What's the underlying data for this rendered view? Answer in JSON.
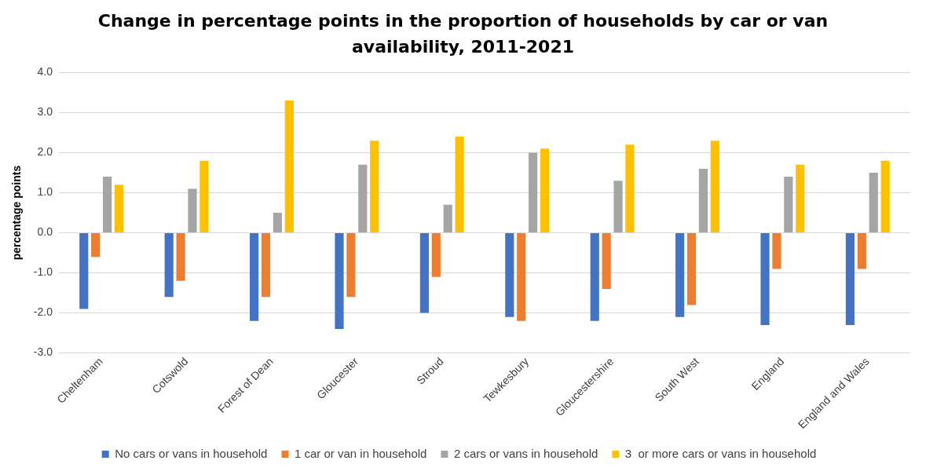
{
  "chart_data": {
    "type": "bar",
    "title": "Change in percentage points in the proportion of households by car or van availability, 2011-2021",
    "ylabel": "percentage points",
    "categories": [
      "Cheltenham",
      "Cotswold",
      "Forest of Dean",
      "Gloucester",
      "Stroud",
      "Tewkesbury",
      "Gloucestershire",
      "South West",
      "England",
      "England and Wales"
    ],
    "series": [
      {
        "name": "No cars or vans in household",
        "color": "#4472c4",
        "values": [
          -1.9,
          -1.6,
          -2.2,
          -2.4,
          -2.0,
          -2.1,
          -2.2,
          -2.1,
          -2.3,
          -2.3
        ]
      },
      {
        "name": "1 car or van in household",
        "color": "#ed7d31",
        "values": [
          -0.6,
          -1.2,
          -1.6,
          -1.6,
          -1.1,
          -2.2,
          -1.4,
          -1.8,
          -0.9,
          -0.9
        ]
      },
      {
        "name": "2 cars or vans in household",
        "color": "#a5a5a5",
        "values": [
          1.4,
          1.1,
          0.5,
          1.7,
          0.7,
          2.0,
          1.3,
          1.6,
          1.4,
          1.5
        ]
      },
      {
        "name": "3  or more cars or vans in household",
        "color": "#ffc000",
        "values": [
          1.2,
          1.8,
          3.3,
          2.3,
          2.4,
          2.1,
          2.2,
          2.3,
          1.7,
          1.8
        ]
      }
    ],
    "ylim": [
      -3,
      4
    ],
    "yticks": [
      {
        "value": -3,
        "label": "-3.0"
      },
      {
        "value": -2,
        "label": "-2.0"
      },
      {
        "value": -1,
        "label": "-1.0"
      },
      {
        "value": 0,
        "label": "0.0"
      },
      {
        "value": 1,
        "label": "1.0"
      },
      {
        "value": 2,
        "label": "2.0"
      },
      {
        "value": 3,
        "label": "3.0"
      },
      {
        "value": 4,
        "label": "4.0"
      }
    ],
    "grid": "y",
    "legend": "bottom"
  }
}
